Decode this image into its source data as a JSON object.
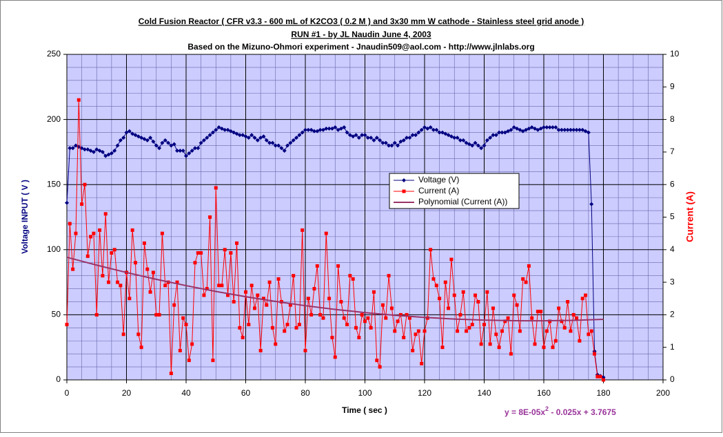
{
  "chart_data": {
    "type": "line",
    "title": [
      "Cold Fusion Reactor ( CFR v3.3 - 600 mL of K2CO3 ( 0.2 M ) and 3x30 mm W cathode - Stainless steel grid anode  )",
      "RUN #1 - by JL Naudin June 4, 2003",
      "Based on the Mizuno-Ohmori experiment - Jnaudin509@aol.com - http://www.jlnlabs.org"
    ],
    "xlabel": "Time ( sec )",
    "ylabel": "Voltage INPUT ( V )",
    "y2label": "Current (A)",
    "equation": [
      "y = 8E-05x",
      "2",
      " - 0.025x + 3.7675"
    ],
    "xlim": [
      0,
      200
    ],
    "xticks": [
      0,
      20,
      40,
      60,
      80,
      100,
      120,
      140,
      160,
      180,
      200
    ],
    "ylim": [
      0,
      250
    ],
    "yticks": [
      0,
      50,
      100,
      150,
      200,
      250
    ],
    "y2lim": [
      0,
      10
    ],
    "y2ticks": [
      0,
      1,
      2,
      3,
      4,
      5,
      6,
      7,
      8,
      9,
      10
    ],
    "grid": true,
    "minor_grid": {
      "x": 5,
      "y": 10
    },
    "legend": "center-right",
    "x": [
      0,
      1,
      2,
      3,
      4,
      5,
      6,
      7,
      8,
      9,
      10,
      11,
      12,
      13,
      14,
      15,
      16,
      17,
      18,
      19,
      20,
      21,
      22,
      23,
      24,
      25,
      26,
      27,
      28,
      29,
      30,
      31,
      32,
      33,
      34,
      35,
      36,
      37,
      38,
      39,
      40,
      41,
      42,
      43,
      44,
      45,
      46,
      47,
      48,
      49,
      50,
      51,
      52,
      53,
      54,
      55,
      56,
      57,
      58,
      59,
      60,
      61,
      62,
      63,
      64,
      65,
      66,
      67,
      68,
      69,
      70,
      71,
      72,
      73,
      74,
      75,
      76,
      77,
      78,
      79,
      80,
      81,
      82,
      83,
      84,
      85,
      86,
      87,
      88,
      89,
      90,
      91,
      92,
      93,
      94,
      95,
      96,
      97,
      98,
      99,
      100,
      101,
      102,
      103,
      104,
      105,
      106,
      107,
      108,
      109,
      110,
      111,
      112,
      113,
      114,
      115,
      116,
      117,
      118,
      119,
      120,
      121,
      122,
      123,
      124,
      125,
      126,
      127,
      128,
      129,
      130,
      131,
      132,
      133,
      134,
      135,
      136,
      137,
      138,
      139,
      140,
      141,
      142,
      143,
      144,
      145,
      146,
      147,
      148,
      149,
      150,
      151,
      152,
      153,
      154,
      155,
      156,
      157,
      158,
      159,
      160,
      161,
      162,
      163,
      164,
      165,
      166,
      167,
      168,
      169,
      170,
      171,
      172,
      173,
      174,
      175,
      176,
      177,
      178,
      179,
      180
    ],
    "series": [
      {
        "name": "Voltage (V)",
        "color": "#000080",
        "marker": "diamond",
        "values": [
          136,
          178,
          178,
          180,
          179,
          178,
          177,
          177,
          176,
          175,
          177,
          176,
          175,
          172,
          173,
          174,
          176,
          180,
          184,
          186,
          190,
          191,
          189,
          188,
          187,
          186,
          185,
          184,
          186,
          183,
          180,
          178,
          182,
          184,
          182,
          180,
          181,
          176,
          176,
          176,
          172,
          174,
          176,
          178,
          178,
          182,
          184,
          186,
          188,
          190,
          192,
          194,
          193,
          192,
          192,
          191,
          190,
          189,
          188,
          188,
          187,
          186,
          188,
          186,
          184,
          186,
          187,
          184,
          182,
          182,
          180,
          180,
          178,
          176,
          180,
          182,
          184,
          186,
          188,
          190,
          192,
          192,
          192,
          191,
          191,
          192,
          192,
          193,
          193,
          193,
          194,
          192,
          193,
          194,
          190,
          188,
          187,
          188,
          186,
          188,
          188,
          186,
          186,
          184,
          186,
          184,
          182,
          182,
          180,
          180,
          182,
          180,
          183,
          184,
          186,
          186,
          188,
          188,
          190,
          192,
          194,
          193,
          194,
          192,
          192,
          190,
          190,
          189,
          188,
          187,
          186,
          186,
          184,
          184,
          182,
          181,
          180,
          182,
          180,
          178,
          180,
          184,
          186,
          188,
          188,
          190,
          190,
          190,
          191,
          192,
          194,
          193,
          192,
          191,
          192,
          193,
          194,
          193,
          192,
          193,
          194,
          194,
          194,
          194,
          194,
          192,
          192,
          192,
          192,
          192,
          192,
          192,
          192,
          192,
          191,
          190,
          135,
          22,
          4,
          3,
          2
        ]
      },
      {
        "name": "Current (A)",
        "color": "#ff0000",
        "marker": "square",
        "axis": "y2",
        "values": [
          1.7,
          4.8,
          3.4,
          4.5,
          8.6,
          5.4,
          6.0,
          3.8,
          4.4,
          4.5,
          2.0,
          4.6,
          3.2,
          5.1,
          3.0,
          3.9,
          4.0,
          3.0,
          2.9,
          1.4,
          3.3,
          2.5,
          4.6,
          3.6,
          1.4,
          1.0,
          4.2,
          3.4,
          2.7,
          3.3,
          2.0,
          2.0,
          4.5,
          2.9,
          3.0,
          0.2,
          2.3,
          3.0,
          0.9,
          1.9,
          1.7,
          0.6,
          1.1,
          3.6,
          3.9,
          3.9,
          2.6,
          2.8,
          5.0,
          0.6,
          5.9,
          2.9,
          2.9,
          4.0,
          2.6,
          3.9,
          2.4,
          4.2,
          1.6,
          1.3,
          2.7,
          1.7,
          2.9,
          2.2,
          2.6,
          0.9,
          2.5,
          2.3,
          3.0,
          1.6,
          1.1,
          3.1,
          2.4,
          1.5,
          1.7,
          2.3,
          3.2,
          1.6,
          1.7,
          4.6,
          0.9,
          2.5,
          2.0,
          2.8,
          3.5,
          2.0,
          1.9,
          4.5,
          2.5,
          1.3,
          0.7,
          3.5,
          2.4,
          1.9,
          1.7,
          3.2,
          3.1,
          1.6,
          1.3,
          2.0,
          1.8,
          1.9,
          1.6,
          2.7,
          0.6,
          0.4,
          2.3,
          1.9,
          3.2,
          2.2,
          1.5,
          1.8,
          2.0,
          1.3,
          2.0,
          1.9,
          0.9,
          1.4,
          1.5,
          0.5,
          1.5,
          1.9,
          4.0,
          3.1,
          2.9,
          2.5,
          1.0,
          3.0,
          2.2,
          3.7,
          2.6,
          1.5,
          2.0,
          2.7,
          1.5,
          1.6,
          1.7,
          2.6,
          2.4,
          1.1,
          1.7,
          2.7,
          1.1,
          2.2,
          1.4,
          1.0,
          1.5,
          1.8,
          1.9,
          0.8,
          2.6,
          2.3,
          1.5,
          3.1,
          3.0,
          3.5,
          1.9,
          1.1,
          2.1,
          2.1,
          1.0,
          1.5,
          1.8,
          1.0,
          1.2,
          2.2,
          1.8,
          1.6,
          2.4,
          1.5,
          2.0,
          1.9,
          1.2,
          2.5,
          2.6,
          1.4,
          1.5,
          0.8,
          0.1,
          0.1,
          0.0
        ]
      },
      {
        "name": "Polynomial (Current (A))",
        "color": "#993366",
        "marker": "none",
        "axis": "y2",
        "x": [
          0,
          10,
          20,
          30,
          40,
          50,
          60,
          70,
          80,
          90,
          100,
          110,
          120,
          130,
          140,
          150,
          160,
          170,
          180
        ],
        "values": [
          3.7675,
          3.5255,
          3.2995,
          3.0895,
          2.8955,
          2.7175,
          2.5555,
          2.4095,
          2.2795,
          2.1655,
          2.0675,
          1.9855,
          1.9195,
          1.8695,
          1.8355,
          1.8175,
          1.8155,
          1.8295,
          1.8595
        ]
      }
    ]
  }
}
